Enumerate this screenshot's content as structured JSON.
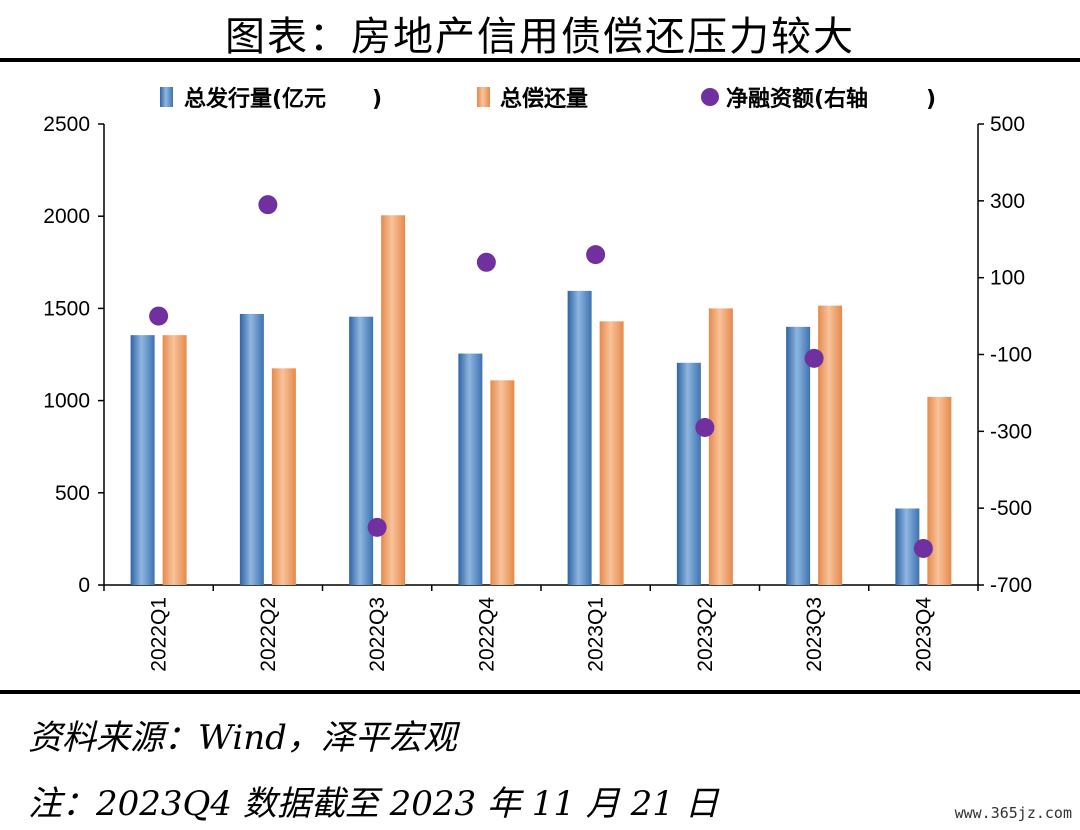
{
  "title": "图表：房地产信用债偿还压力较大",
  "source": "资料来源：Wind，泽平宏观",
  "footnote": "注：2023Q4 数据截至 2023 年 11 月 21 日",
  "watermark": "www.365jz.com",
  "colors": {
    "issuance": "#5b8fc7",
    "repayment": "#eea06a",
    "net": "#7030a0"
  },
  "chart_data": {
    "type": "bar",
    "categories": [
      "2022Q1",
      "2022Q2",
      "2022Q3",
      "2022Q4",
      "2023Q1",
      "2023Q2",
      "2023Q3",
      "2023Q4"
    ],
    "series": [
      {
        "name": "总发行量(亿元",
        "kind": "bar",
        "axis": "left",
        "values": [
          1355,
          1470,
          1455,
          1255,
          1595,
          1205,
          1400,
          415
        ]
      },
      {
        "name": "总偿还量",
        "kind": "bar",
        "axis": "left",
        "values": [
          1355,
          1175,
          2005,
          1110,
          1430,
          1500,
          1515,
          1020
        ]
      },
      {
        "name": "净融资额(右轴",
        "kind": "scatter",
        "axis": "right",
        "values": [
          0,
          290,
          -550,
          140,
          160,
          -290,
          -110,
          -605
        ]
      }
    ],
    "ylim_left": [
      0,
      2500
    ],
    "yticks_left": [
      "0",
      "500",
      "1000",
      "1500",
      "2000",
      "2500"
    ],
    "ylim_right": [
      -700,
      500
    ],
    "yticks_right": [
      "-700",
      "-500",
      "-300",
      "-100",
      "100",
      "300",
      "500"
    ],
    "legend_position": "top",
    "grid": false
  }
}
